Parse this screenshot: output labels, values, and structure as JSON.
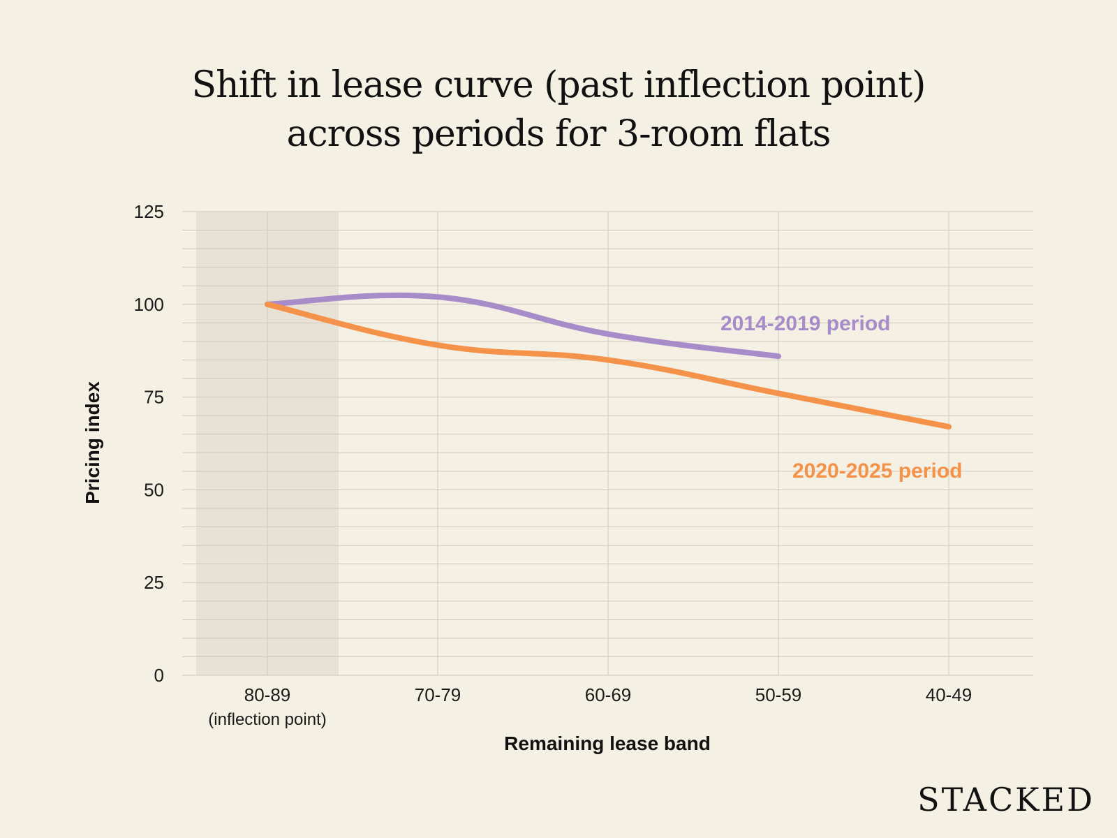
{
  "title_line1": "Shift in lease curve (past inflection point)",
  "title_line2": "across periods for 3-room flats",
  "brand": "STACKED",
  "colors": {
    "background": "#f4f0e4",
    "highlight_band": "#e8e1d5",
    "series_2014_2019": "#a88bc9",
    "series_2020_2025": "#f4924a"
  },
  "chart_data": {
    "type": "line",
    "title": "Shift in lease curve (past inflection point) across periods for 3-room flats",
    "xlabel": "Remaining lease band",
    "ylabel": "Pricing index",
    "categories": [
      "80-89",
      "70-79",
      "60-69",
      "50-59",
      "40-49"
    ],
    "category_sublabels": [
      "(inflection point)",
      "",
      "",
      "",
      ""
    ],
    "highlighted_category": "80-89",
    "ylim": [
      0,
      125
    ],
    "yticks": [
      0,
      25,
      50,
      75,
      100,
      125
    ],
    "grid": true,
    "series": [
      {
        "name": "2014-2019 period",
        "values": [
          100,
          102,
          92,
          86,
          null
        ]
      },
      {
        "name": "2020-2025 period",
        "values": [
          100,
          89,
          85,
          76,
          67
        ]
      }
    ]
  }
}
